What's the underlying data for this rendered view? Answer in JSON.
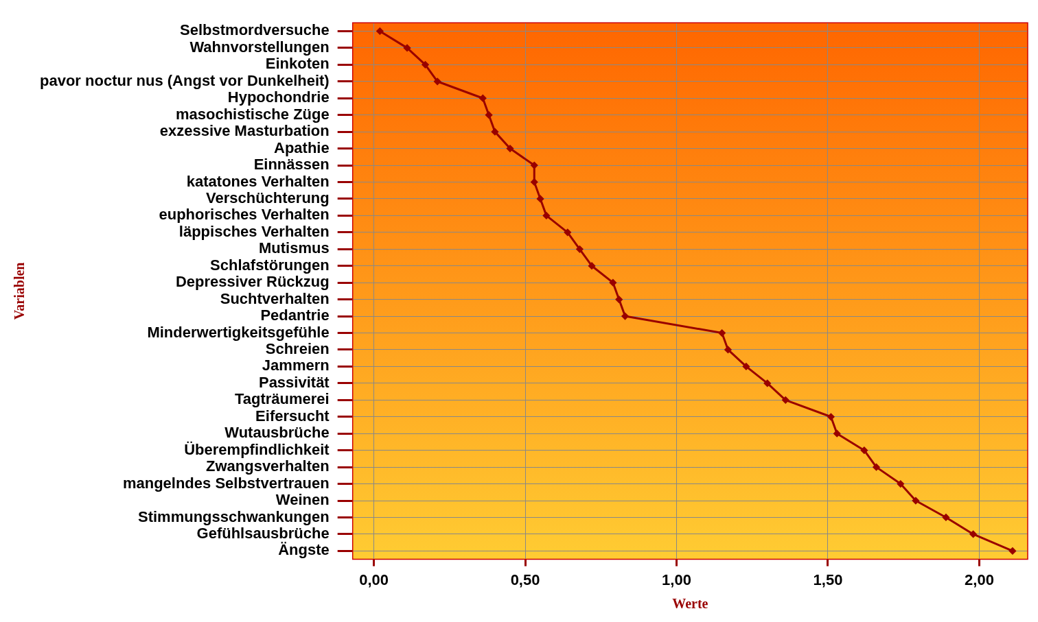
{
  "chart_data": {
    "type": "line",
    "orientation": "horizontal",
    "xlabel": "Werte",
    "ylabel": "Variablen",
    "categories": [
      "Selbstmordversuche",
      "Wahnvorstellungen",
      "Einkoten",
      "pavor noctur nus (Angst vor Dunkelheit)",
      "Hypochondrie",
      "masochistische Züge",
      "exzessive Masturbation",
      "Apathie",
      "Einnässen",
      "katatones Verhalten",
      "Verschüchterung",
      "euphorisches Verhalten",
      "läppisches Verhalten",
      "Mutismus",
      "Schlafstörungen",
      "Depressiver Rückzug",
      "Suchtverhalten",
      "Pedantrie",
      "Minderwertigkeitsgefühle",
      "Schreien",
      "Jammern",
      "Passivität",
      "Tagträumerei",
      "Eifersucht",
      "Wutausbrüche",
      "Überempfindlichkeit",
      "Zwangsverhalten",
      "mangelndes Selbstvertrauen",
      "Weinen",
      "Stimmungsschwankungen",
      "Gefühlsausbrüche",
      "Ängste"
    ],
    "series": [
      {
        "color": "#990000",
        "values": [
          0.02,
          0.11,
          0.17,
          0.21,
          0.36,
          0.38,
          0.4,
          0.45,
          0.53,
          0.53,
          0.55,
          0.57,
          0.64,
          0.68,
          0.72,
          0.79,
          0.81,
          0.83,
          1.15,
          1.17,
          1.23,
          1.3,
          1.36,
          1.51,
          1.53,
          1.62,
          1.66,
          1.74,
          1.79,
          1.89,
          1.98,
          2.11
        ]
      }
    ],
    "xlim": [
      -0.07,
      2.16
    ],
    "xticks": [
      {
        "value": 0,
        "label": "0,00"
      },
      {
        "value": 0.5,
        "label": "0,50"
      },
      {
        "value": 1,
        "label": "1,00"
      },
      {
        "value": 1.5,
        "label": "1,50"
      },
      {
        "value": 2,
        "label": "2,00"
      }
    ],
    "grid": true,
    "legend": false,
    "marker": "diamond",
    "line_style": "solid"
  }
}
